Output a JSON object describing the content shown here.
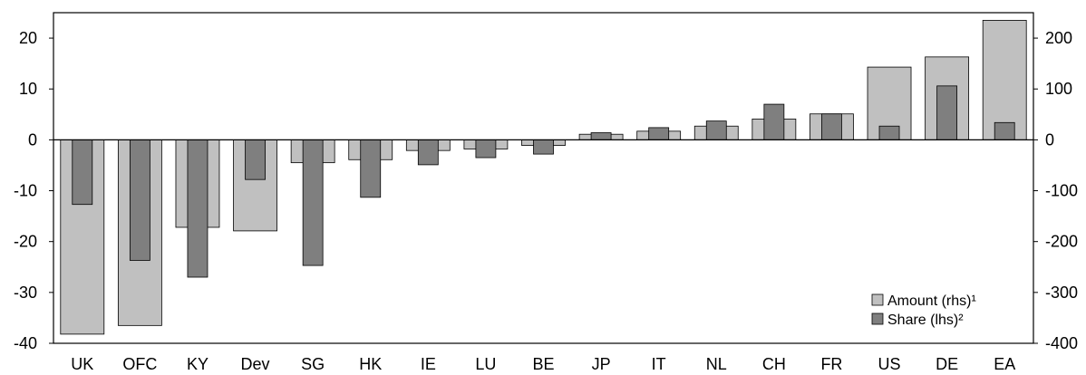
{
  "chart_data": {
    "type": "bar",
    "categories": [
      "UK",
      "OFC",
      "KY",
      "Dev",
      "SG",
      "HK",
      "IE",
      "LU",
      "BE",
      "JP",
      "IT",
      "NL",
      "CH",
      "FR",
      "US",
      "DE",
      "EA"
    ],
    "series": [
      {
        "name": "Amount (rhs)¹",
        "axis": "right",
        "color": "#c0c0c0",
        "values": [
          -382,
          -365,
          -172,
          -179,
          -45,
          -39,
          -21,
          -18,
          -11,
          11,
          17,
          27,
          41,
          51,
          143,
          163,
          235
        ]
      },
      {
        "name": "Share (lhs)²",
        "axis": "left",
        "color": "#7f7f7f",
        "values": [
          -12.7,
          -23.7,
          -27.0,
          -7.8,
          -24.7,
          -11.3,
          -4.9,
          -3.5,
          -2.8,
          1.4,
          2.4,
          3.7,
          7.0,
          5.1,
          2.7,
          10.6,
          3.4
        ]
      }
    ],
    "left_axis": {
      "ylim": [
        -40,
        25
      ],
      "ticks": [
        "20",
        "10",
        "0",
        "-10",
        "-20",
        "-30",
        "-40"
      ],
      "tick_values": [
        20,
        10,
        0,
        -10,
        -20,
        -30,
        -40
      ]
    },
    "right_axis": {
      "ylim": [
        -400,
        250
      ],
      "ticks": [
        "200",
        "100",
        "0",
        "-100",
        "-200",
        "-300",
        "-400"
      ],
      "tick_values": [
        200,
        100,
        0,
        -100,
        -200,
        -300,
        -400
      ]
    },
    "legend": {
      "position": "bottom-right",
      "items": [
        "Amount (rhs)¹",
        "Share (lhs)²"
      ]
    },
    "grid": false
  }
}
